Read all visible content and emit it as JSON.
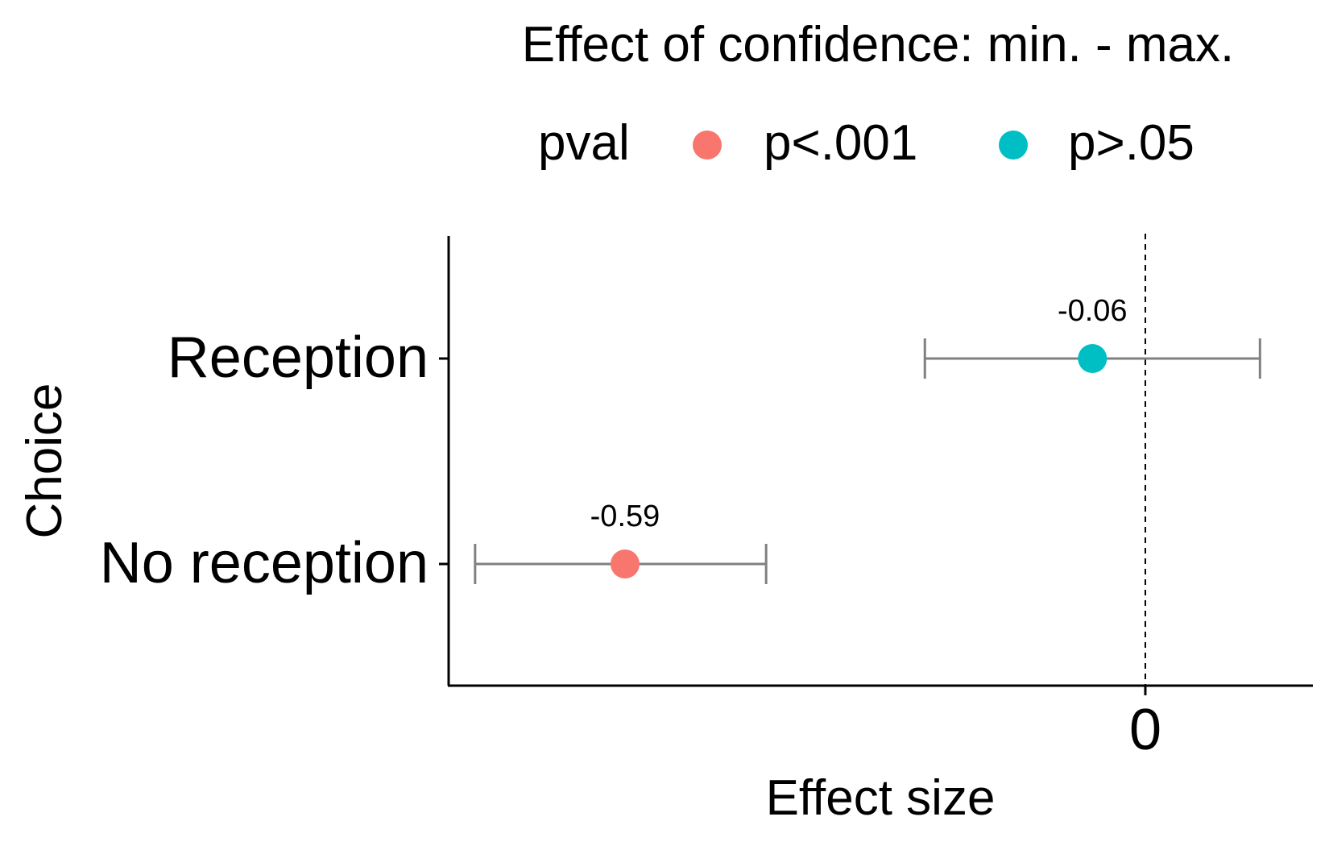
{
  "chart_data": {
    "type": "scatter",
    "title": "Effect of confidence: min. - max.",
    "xlabel": "Effect size",
    "ylabel": "Choice",
    "categories": [
      "Reception",
      "No reception"
    ],
    "x_ticks": [
      0
    ],
    "x_tick_labels": [
      "0"
    ],
    "xlim": [
      -0.79,
      0.19
    ],
    "reference_line": {
      "x": 0,
      "style": "dashed"
    },
    "grid": false,
    "legend": {
      "title": "pval",
      "placement": "top",
      "entries": [
        {
          "label": "p<.001",
          "color": "#F8766D"
        },
        {
          "label": "p>.05",
          "color": "#00BFC4"
        }
      ]
    },
    "points": [
      {
        "category": "Reception",
        "estimate": -0.06,
        "lower": -0.25,
        "upper": 0.13,
        "label": "-0.06",
        "group": "p>.05"
      },
      {
        "category": "No reception",
        "estimate": -0.59,
        "lower": -0.76,
        "upper": -0.43,
        "label": "-0.59",
        "group": "p<.001"
      }
    ],
    "errorbar_color": "#808080"
  }
}
